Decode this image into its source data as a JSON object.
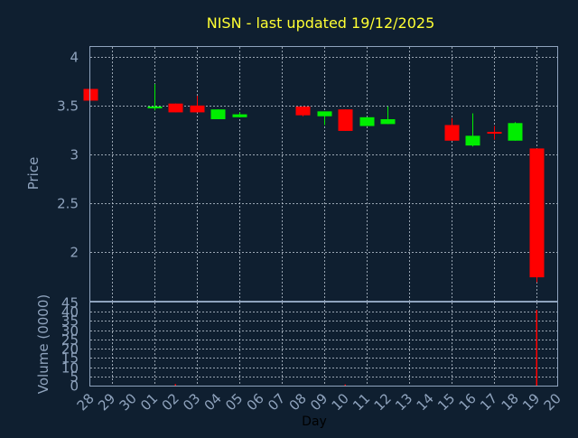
{
  "colors": {
    "background": "#0f1f30",
    "frame": "#8fa3bd",
    "grid": "#c8d2de",
    "title": "#ffff33",
    "text": "#8fa3bd",
    "day_label": "#000000",
    "up": "#00ee00",
    "down": "#ff0000"
  },
  "chart_data": {
    "type": "candlestick",
    "title": "NISN - last updated 19/12/2025",
    "xlabel": "Day",
    "x_ticks": [
      "28",
      "29",
      "30",
      "01",
      "02",
      "03",
      "04",
      "05",
      "06",
      "07",
      "08",
      "09",
      "10",
      "11",
      "12",
      "13",
      "14",
      "15",
      "16",
      "17",
      "18",
      "19",
      "20"
    ],
    "price_panel": {
      "ylabel": "Price",
      "ylim": [
        1.5,
        4.1
      ],
      "y_ticks": [
        "4",
        "3.5",
        "3",
        "2.5",
        "2"
      ],
      "y_tick_values": [
        4,
        3.5,
        3,
        2.5,
        2
      ],
      "grid": true,
      "candles": [
        {
          "day": "28",
          "open": 3.67,
          "high": 3.67,
          "low": 3.55,
          "close": 3.55
        },
        {
          "day": "01",
          "open": 3.48,
          "high": 3.72,
          "low": 3.45,
          "close": 3.49
        },
        {
          "day": "02",
          "open": 3.52,
          "high": 3.52,
          "low": 3.43,
          "close": 3.43
        },
        {
          "day": "03",
          "open": 3.5,
          "high": 3.6,
          "low": 3.43,
          "close": 3.43
        },
        {
          "day": "04",
          "open": 3.36,
          "high": 3.46,
          "low": 3.36,
          "close": 3.46
        },
        {
          "day": "05",
          "open": 3.38,
          "high": 3.43,
          "low": 3.38,
          "close": 3.41
        },
        {
          "day": "08",
          "open": 3.49,
          "high": 3.49,
          "low": 3.39,
          "close": 3.4
        },
        {
          "day": "09",
          "open": 3.39,
          "high": 3.44,
          "low": 3.3,
          "close": 3.44
        },
        {
          "day": "10",
          "open": 3.46,
          "high": 3.46,
          "low": 3.24,
          "close": 3.24
        },
        {
          "day": "11",
          "open": 3.29,
          "high": 3.38,
          "low": 3.29,
          "close": 3.38
        },
        {
          "day": "12",
          "open": 3.31,
          "high": 3.49,
          "low": 3.31,
          "close": 3.36
        },
        {
          "day": "15",
          "open": 3.3,
          "high": 3.37,
          "low": 3.14,
          "close": 3.14
        },
        {
          "day": "16",
          "open": 3.09,
          "high": 3.42,
          "low": 3.08,
          "close": 3.19
        },
        {
          "day": "17",
          "open": 3.23,
          "high": 3.29,
          "low": 3.15,
          "close": 3.22
        },
        {
          "day": "18",
          "open": 3.14,
          "high": 3.33,
          "low": 3.14,
          "close": 3.32
        },
        {
          "day": "19",
          "open": 3.06,
          "high": 3.06,
          "low": 1.69,
          "close": 1.74
        }
      ]
    },
    "volume_panel": {
      "ylabel": "Volume (0000)",
      "ylim": [
        0,
        45
      ],
      "y_ticks": [
        "45",
        "40",
        "35",
        "30",
        "25",
        "20",
        "15",
        "10",
        "5",
        "0"
      ],
      "y_tick_values": [
        45,
        40,
        35,
        30,
        25,
        20,
        15,
        10,
        5,
        0
      ],
      "grid": true,
      "bars": [
        {
          "day": "02",
          "value": 0.8
        },
        {
          "day": "10",
          "value": 0.6
        },
        {
          "day": "19",
          "value": 41
        }
      ]
    }
  }
}
